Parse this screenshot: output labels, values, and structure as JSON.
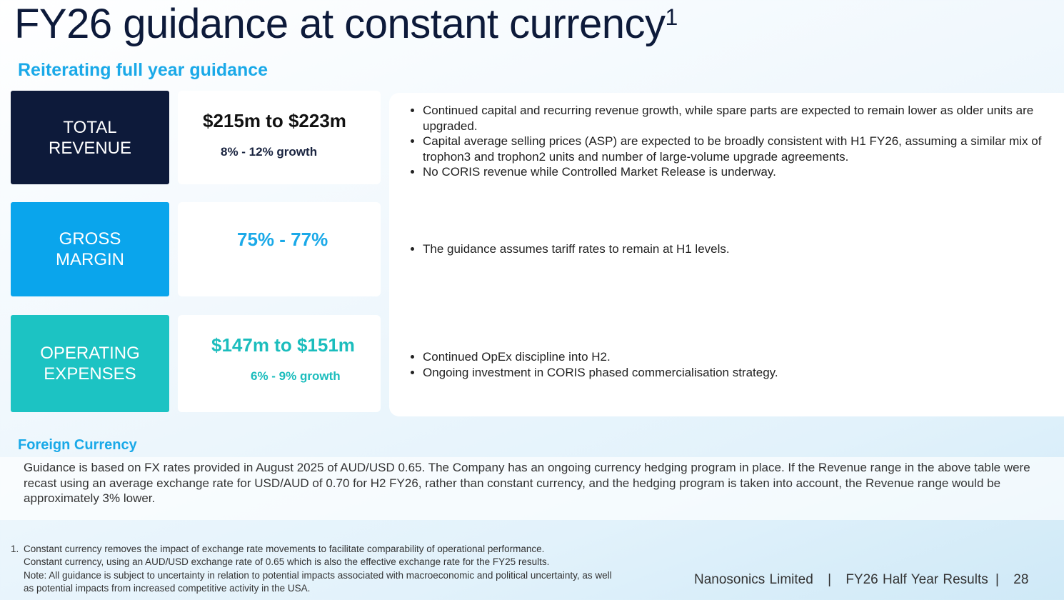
{
  "title": {
    "text": "FY26 guidance at constant currency",
    "superscript": "1"
  },
  "subtitle": "Reiterating full year guidance",
  "rows": [
    {
      "label": "TOTAL REVENUE",
      "value": "$215m to $223m",
      "detail": "8% - 12% growth",
      "bullets": [
        "Continued capital and recurring revenue growth, while spare parts are expected to remain lower as older units are upgraded.",
        "Capital average selling prices (ASP) are expected to be broadly consistent with H1 FY26, assuming a similar mix of trophon3 and trophon2 units and number of large-volume upgrade agreements.",
        "No CORIS revenue while Controlled Market Release is underway."
      ]
    },
    {
      "label": "GROSS MARGIN",
      "value": "75% - 77%",
      "bullets": [
        "The guidance assumes tariff rates to remain at H1 levels."
      ]
    },
    {
      "label": "OPERATING EXPENSES",
      "value": "$147m to $151m",
      "detail": "6% - 9% growth",
      "bullets": [
        "Continued OpEx discipline into H2.",
        "Ongoing investment in CORIS phased commercialisation strategy."
      ]
    }
  ],
  "foreign_currency": {
    "heading": "Foreign Currency",
    "text": "Guidance is based on FX rates provided in August 2025 of AUD/USD 0.65. The Company has an ongoing currency hedging program in place.  If the Revenue range in the above table were recast using an average exchange rate for USD/AUD of 0.70 for H2 FY26, rather than constant currency, and the hedging program is taken into account, the Revenue range would be approximately 3% lower."
  },
  "footnote": {
    "number": "1.",
    "lines": [
      "Constant currency removes the impact of exchange rate movements to facilitate comparability of operational performance.",
      "Constant currency, using an AUD/USD exchange rate of 0.65 which is also the effective exchange rate for the FY25 results.",
      "Note: All guidance is subject to uncertainty in relation to potential impacts associated with macroeconomic and political uncertainty, as well as potential impacts from increased competitive activity in the USA."
    ]
  },
  "footer": {
    "company": "Nanosonics Limited",
    "separator": "|",
    "report": "FY26 Half Year Results",
    "page": "28"
  }
}
